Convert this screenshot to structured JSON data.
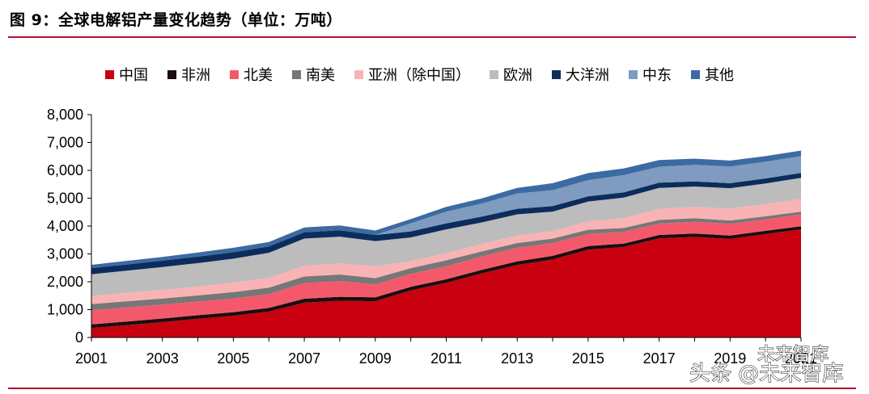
{
  "figure": {
    "title": "图 9：全球电解铝产量变化趋势（单位：万吨）"
  },
  "watermark": {
    "line1": "未来智库",
    "line2": "头条 @未来智库"
  },
  "colors": {
    "accent_rule": "#b2102e"
  },
  "chart_data": {
    "type": "area",
    "stacked": true,
    "x": [
      2001,
      2002,
      2003,
      2004,
      2005,
      2006,
      2007,
      2008,
      2009,
      2010,
      2011,
      2012,
      2013,
      2014,
      2015,
      2016,
      2017,
      2018,
      2019,
      2020,
      2021
    ],
    "x_tick_labels": [
      "2001",
      "2003",
      "2005",
      "2007",
      "2009",
      "2011",
      "2013",
      "2015",
      "2017",
      "2019",
      "2021"
    ],
    "y_tick_labels": [
      "0",
      "1,000",
      "2,000",
      "3,000",
      "4,000",
      "5,000",
      "6,000",
      "7,000",
      "8,000"
    ],
    "ylim": [
      0,
      8000
    ],
    "legend_position": "top",
    "series": [
      {
        "name": "中国",
        "color": "#c8000f",
        "values": [
          340,
          440,
          550,
          670,
          780,
          930,
          1250,
          1320,
          1300,
          1690,
          1960,
          2300,
          2600,
          2800,
          3150,
          3250,
          3560,
          3610,
          3540,
          3710,
          3880
        ]
      },
      {
        "name": "非洲",
        "color": "#1a0e0e",
        "values": [
          130,
          130,
          130,
          130,
          130,
          130,
          140,
          140,
          140,
          130,
          130,
          130,
          130,
          130,
          130,
          120,
          120,
          120,
          120,
          120,
          110
        ]
      },
      {
        "name": "北美",
        "color": "#f4596b",
        "values": [
          510,
          510,
          500,
          490,
          490,
          500,
          560,
          560,
          470,
          460,
          470,
          480,
          490,
          460,
          440,
          420,
          410,
          420,
          420,
          410,
          430
        ]
      },
      {
        "name": "南美",
        "color": "#777777",
        "values": [
          220,
          220,
          220,
          220,
          230,
          230,
          240,
          240,
          220,
          210,
          210,
          180,
          170,
          160,
          150,
          140,
          130,
          130,
          120,
          110,
          100
        ]
      },
      {
        "name": "亚洲（除中国）",
        "color": "#f9b3b5",
        "values": [
          290,
          300,
          310,
          320,
          340,
          350,
          380,
          400,
          430,
          250,
          260,
          270,
          270,
          270,
          300,
          350,
          400,
          410,
          430,
          440,
          460
        ]
      },
      {
        "name": "欧洲",
        "color": "#bcbcbc",
        "values": [
          780,
          800,
          820,
          840,
          860,
          900,
          980,
          960,
          900,
          850,
          850,
          770,
          760,
          700,
          710,
          740,
          750,
          730,
          730,
          740,
          750
        ]
      },
      {
        "name": "大洋洲",
        "color": "#0c2d5c",
        "values": [
          220,
          220,
          230,
          230,
          230,
          230,
          230,
          230,
          220,
          220,
          220,
          210,
          200,
          200,
          190,
          190,
          190,
          180,
          180,
          180,
          180
        ]
      },
      {
        "name": "中东",
        "color": "#7f9bbf",
        "values": [
          0,
          0,
          0,
          0,
          0,
          0,
          0,
          0,
          0,
          290,
          420,
          470,
          550,
          570,
          580,
          620,
          570,
          600,
          600,
          600,
          600
        ]
      },
      {
        "name": "其他",
        "color": "#3c6aa3",
        "values": [
          120,
          130,
          130,
          150,
          160,
          160,
          170,
          170,
          160,
          150,
          170,
          180,
          200,
          250,
          250,
          240,
          240,
          220,
          210,
          200,
          200
        ]
      }
    ]
  }
}
